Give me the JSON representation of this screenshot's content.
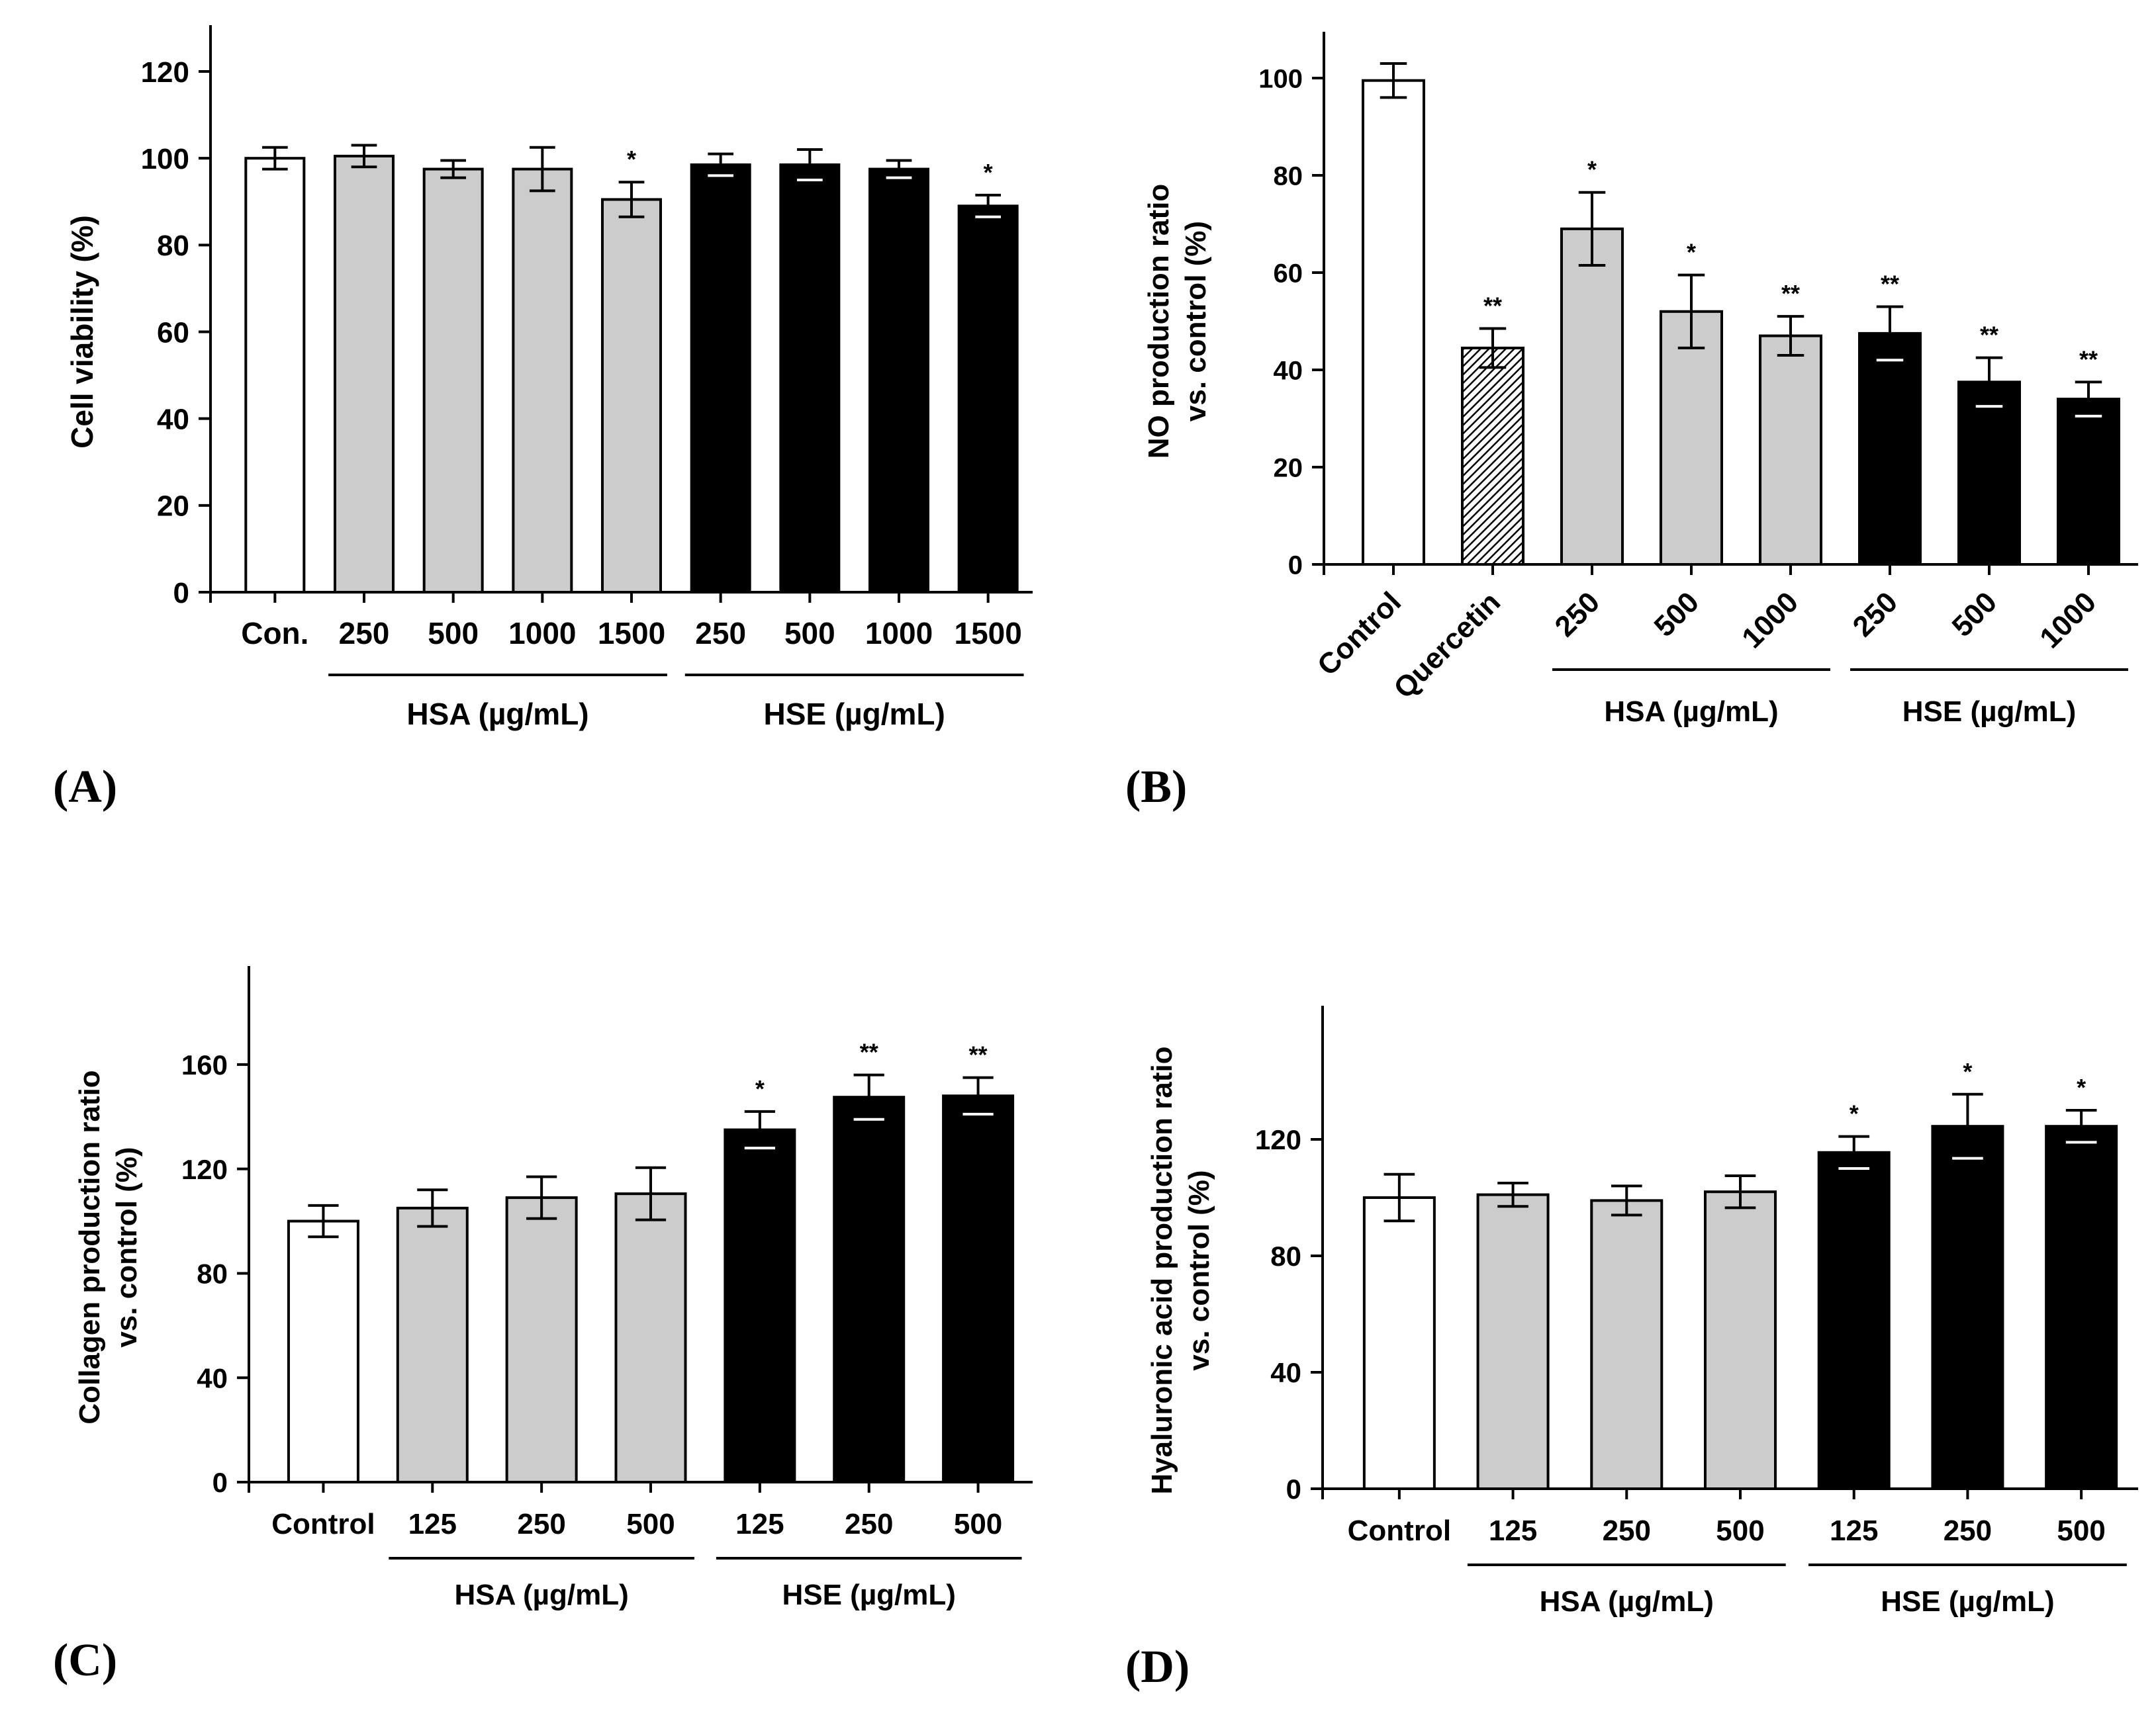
{
  "panel_labels": [
    "(A)",
    "(B)",
    "(C)",
    "(D)"
  ],
  "colors": {
    "control": "#ffffff",
    "hsa": "#cccccc",
    "hse": "#000000",
    "quercetin": "hatched",
    "axis": "#000000"
  },
  "chart_data": [
    {
      "type": "bar",
      "panel": "(A)",
      "ylabel": "Cell viability (%)",
      "ylim": [
        0,
        120
      ],
      "yticks": [
        0,
        20,
        40,
        60,
        80,
        100,
        120
      ],
      "categories": [
        "Con.",
        "250",
        "500",
        "1000",
        "1500",
        "250",
        "500",
        "1000",
        "1500"
      ],
      "values": [
        100,
        100.5,
        97.5,
        97.5,
        90.5,
        98.5,
        98.5,
        97.5,
        89
      ],
      "errors": [
        2.5,
        2.5,
        2.0,
        5.0,
        4.0,
        2.5,
        3.5,
        2.0,
        2.5
      ],
      "groups": [
        "control",
        "hsa",
        "hsa",
        "hsa",
        "hsa",
        "hse",
        "hse",
        "hse",
        "hse"
      ],
      "significance": [
        "",
        "",
        "",
        "",
        "*",
        "",
        "",
        "",
        "*"
      ],
      "group_labels": [
        {
          "text": "HSA (µg/mL)",
          "from": 1,
          "to": 4
        },
        {
          "text": "HSE (µg/mL)",
          "from": 5,
          "to": 8
        }
      ],
      "rotate_ticks": false
    },
    {
      "type": "bar",
      "panel": "(B)",
      "ylabel": [
        "NO production ratio",
        "vs. control (%)"
      ],
      "ylim": [
        0,
        100
      ],
      "yticks": [
        0,
        20,
        40,
        60,
        80,
        100
      ],
      "categories": [
        "Control",
        "Quercetin",
        "250",
        "500",
        "1000",
        "250",
        "500",
        "1000"
      ],
      "values": [
        99.5,
        44.5,
        69,
        52,
        47,
        47.5,
        37.5,
        34
      ],
      "errors": [
        3.5,
        4.0,
        7.5,
        7.5,
        4.0,
        5.5,
        5.0,
        3.5
      ],
      "groups": [
        "control",
        "quercetin",
        "hsa",
        "hsa",
        "hsa",
        "hse",
        "hse",
        "hse"
      ],
      "significance": [
        "",
        "**",
        "*",
        "*",
        "**",
        "**",
        "**",
        "**"
      ],
      "group_labels": [
        {
          "text": "HSA (µg/mL)",
          "from": 2,
          "to": 4
        },
        {
          "text": "HSE (µg/mL)",
          "from": 5,
          "to": 7
        }
      ],
      "rotate_ticks": true
    },
    {
      "type": "bar",
      "panel": "(C)",
      "ylabel": [
        "Collagen production ratio",
        "vs. control (%)"
      ],
      "ylim": [
        0,
        180
      ],
      "yticks": [
        0,
        40,
        80,
        120,
        160
      ],
      "categories": [
        "Control",
        "125",
        "250",
        "500",
        "125",
        "250",
        "500"
      ],
      "values": [
        100,
        105,
        109,
        110.5,
        135,
        147.5,
        148
      ],
      "errors": [
        6,
        7,
        8,
        10,
        7,
        8.5,
        7
      ],
      "groups": [
        "control",
        "hsa",
        "hsa",
        "hsa",
        "hse",
        "hse",
        "hse"
      ],
      "significance": [
        "",
        "",
        "",
        "",
        "*",
        "**",
        "**"
      ],
      "group_labels": [
        {
          "text": "HSA (µg/mL)",
          "from": 1,
          "to": 3
        },
        {
          "text": "HSE (µg/mL)",
          "from": 4,
          "to": 6
        }
      ],
      "rotate_ticks": false
    },
    {
      "type": "bar",
      "panel": "(D)",
      "ylabel": [
        "Hyaluronic acid production ratio",
        "vs. control (%)"
      ],
      "ylim": [
        0,
        150
      ],
      "yticks": [
        0,
        40,
        80,
        120
      ],
      "categories": [
        "Control",
        "125",
        "250",
        "500",
        "125",
        "250",
        "500"
      ],
      "values": [
        100,
        101,
        99,
        102,
        115.5,
        124.5,
        124.5
      ],
      "errors": [
        8,
        4,
        5,
        5.5,
        5.5,
        11,
        5.5
      ],
      "groups": [
        "control",
        "hsa",
        "hsa",
        "hsa",
        "hse",
        "hse",
        "hse"
      ],
      "significance": [
        "",
        "",
        "",
        "",
        "*",
        "*",
        "*"
      ],
      "group_labels": [
        {
          "text": "HSA (µg/mL)",
          "from": 1,
          "to": 3
        },
        {
          "text": "HSE (µg/mL)",
          "from": 4,
          "to": 6
        }
      ],
      "rotate_ticks": false
    }
  ]
}
